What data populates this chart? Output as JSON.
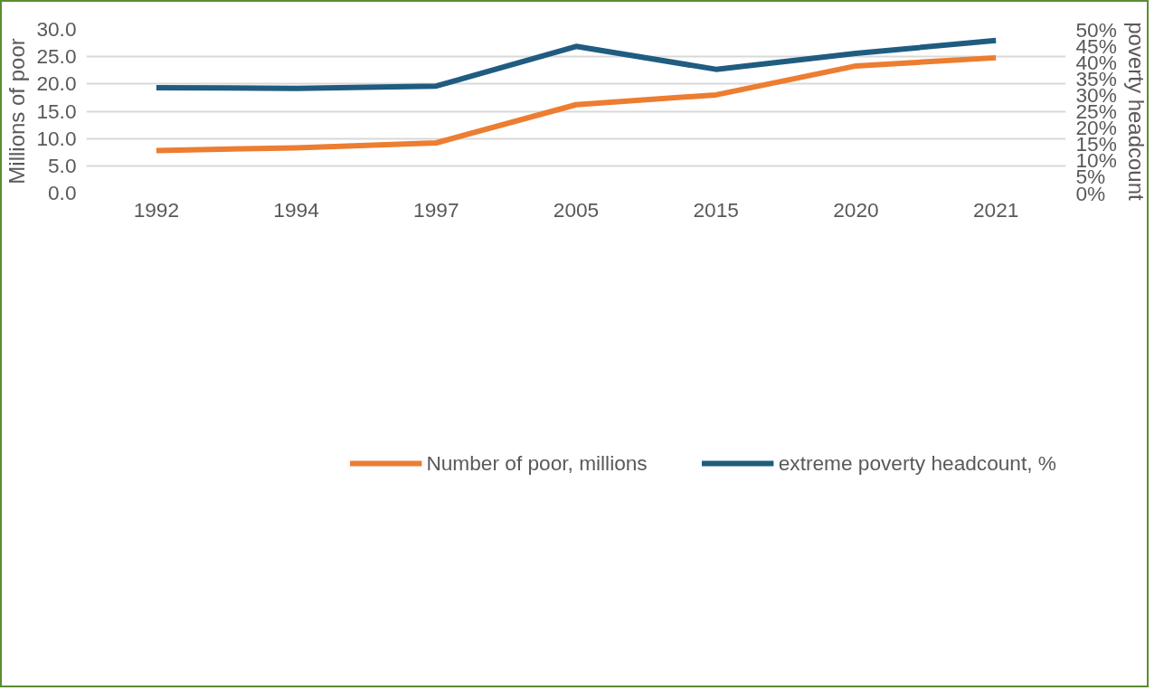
{
  "chart_data": {
    "type": "line",
    "ylabel": "Millions of poor",
    "y2label": "poverty headcount",
    "categories": [
      "1992",
      "1994",
      "1997",
      "2005",
      "2015",
      "2020",
      "2021"
    ],
    "series": [
      {
        "name": "Number of poor, millions",
        "color": "#ed7d31",
        "values": [
          7.8,
          8.3,
          9.2,
          16.2,
          18.0,
          23.3,
          24.8
        ]
      },
      {
        "name": "extreme poverty headcount, %",
        "color": "#1f5c80",
        "axis": "y2",
        "values": [
          32.2,
          32.0,
          32.7,
          44.8,
          37.8,
          42.7,
          46.6
        ]
      }
    ],
    "ylim": [
      0,
      30
    ],
    "yticks": [
      {
        "value": 0,
        "label": "0.0"
      },
      {
        "value": 5,
        "label": "5.0"
      },
      {
        "value": 10,
        "label": "10.0"
      },
      {
        "value": 15,
        "label": "15.0"
      },
      {
        "value": 20,
        "label": "20.0"
      },
      {
        "value": 25,
        "label": "25.0"
      },
      {
        "value": 30,
        "label": "30.0"
      }
    ],
    "y2lim": [
      0,
      50
    ],
    "y2ticks": [
      {
        "value": 0,
        "label": "0%"
      },
      {
        "value": 5,
        "label": "5%"
      },
      {
        "value": 10,
        "label": "10%"
      },
      {
        "value": 15,
        "label": "15%"
      },
      {
        "value": 20,
        "label": "20%"
      },
      {
        "value": 25,
        "label": "25%"
      },
      {
        "value": 30,
        "label": "30%"
      },
      {
        "value": 35,
        "label": "35%"
      },
      {
        "value": 40,
        "label": "40%"
      },
      {
        "value": 45,
        "label": "45%"
      },
      {
        "value": 50,
        "label": "50%"
      }
    ],
    "grid": "y",
    "legend": "bottom",
    "line_style": "solid"
  }
}
